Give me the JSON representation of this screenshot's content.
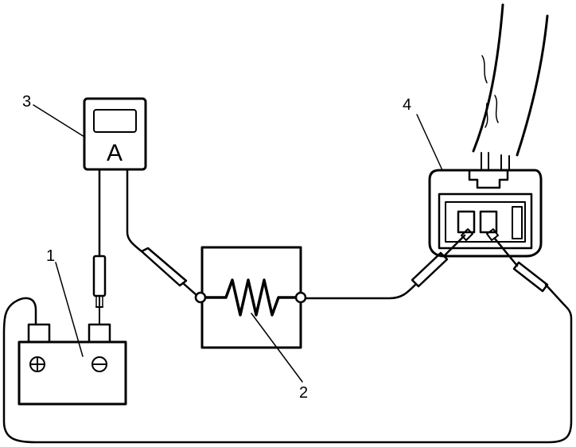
{
  "labels": {
    "battery": "1",
    "resistor": "2",
    "ammeter": "3",
    "connector": "4"
  },
  "ammeter": {
    "symbol": "A"
  },
  "battery": {
    "positive_symbol": "⊕",
    "negative_symbol": "⊖"
  },
  "colors": {
    "line": "#000000",
    "background": "#ffffff"
  }
}
